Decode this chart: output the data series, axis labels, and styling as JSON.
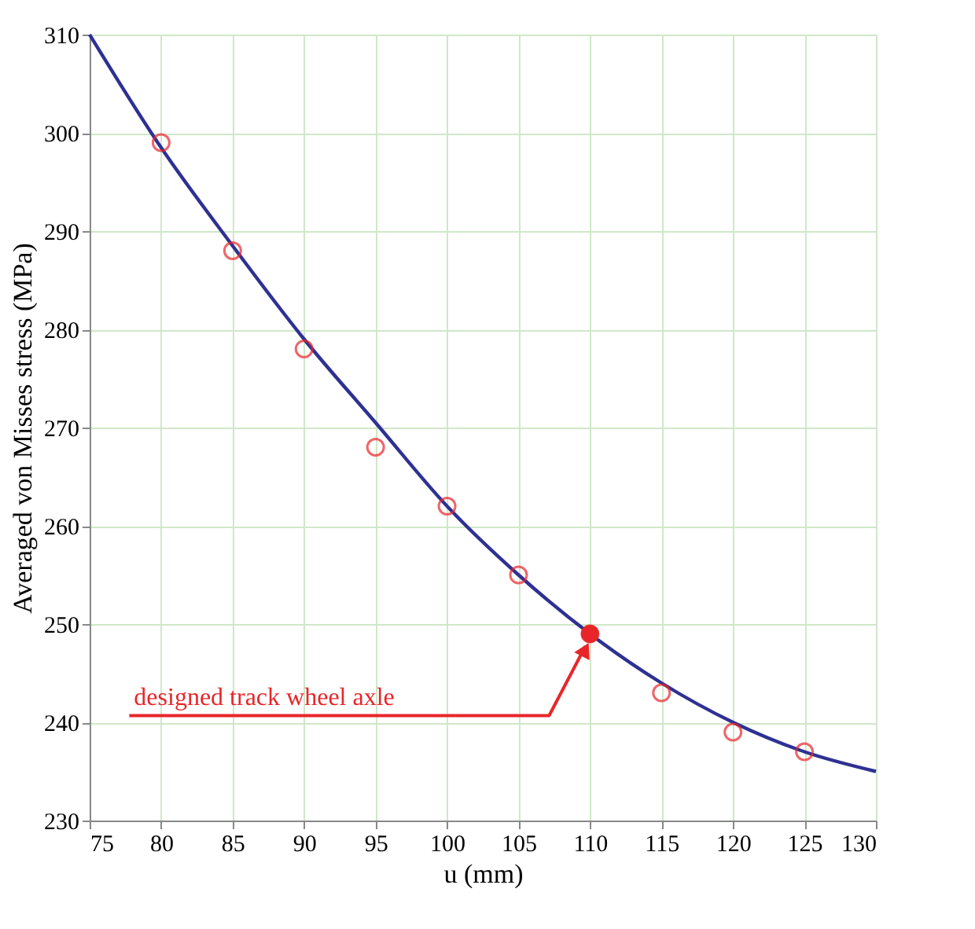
{
  "chart_data": {
    "type": "line",
    "xlabel": "u (mm)",
    "ylabel": "Averaged von Misses stress (MPa)",
    "xlim": [
      75,
      130
    ],
    "xticks": [
      75,
      80,
      85,
      90,
      95,
      100,
      105,
      110,
      115,
      120,
      125,
      130
    ],
    "ylim": [
      230,
      310
    ],
    "yticks": [
      230,
      240,
      250,
      260,
      270,
      280,
      290,
      300,
      310
    ],
    "grid": true,
    "series": [
      {
        "type": "line",
        "color": "#2e3192",
        "x": [
          75,
          80,
          85,
          90,
          95,
          100,
          105,
          110,
          115,
          120,
          125,
          130
        ],
        "values": [
          310,
          298.5,
          288.5,
          279,
          270.5,
          262,
          255,
          249,
          244,
          240,
          237,
          235
        ],
        "marker": "none"
      },
      {
        "type": "scatter",
        "color": "#e8262a",
        "x": [
          80,
          85,
          90,
          95,
          100,
          105,
          110,
          115,
          120,
          125
        ],
        "values": [
          299,
          288,
          278,
          268,
          262,
          255,
          249,
          243,
          239,
          237
        ],
        "marker": "circle"
      }
    ],
    "annotations": [
      {
        "text": "designed track wheel axle",
        "x": 110,
        "y": 249
      }
    ]
  }
}
